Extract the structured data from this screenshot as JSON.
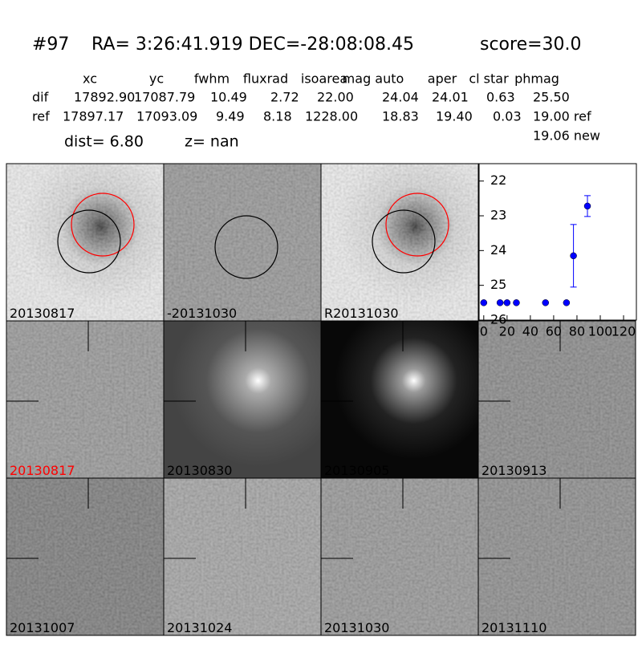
{
  "header": {
    "id": "#97",
    "coords": "RA= 3:26:41.919 DEC=-28:08:08.45",
    "score": "score=30.0"
  },
  "table": {
    "columns": [
      "xc",
      "yc",
      "fwhm",
      "fluxrad",
      "isoarea",
      "mag auto",
      "aper",
      "cl star",
      "phmag"
    ],
    "rows": [
      [
        "dif",
        "17892.90",
        "17087.79",
        "10.49",
        "2.72",
        "22.00",
        "24.04",
        "24.01",
        "0.63",
        "25.50"
      ],
      [
        "ref",
        "17897.17",
        "17093.09",
        "9.49",
        "8.18",
        "1228.00",
        "18.83",
        "19.40",
        "0.03",
        "19.00 ref"
      ]
    ],
    "note": "19.06 new",
    "dist": "dist=  6.80",
    "z": "z=   nan"
  },
  "tiles": [
    "20130817",
    "-20131030",
    "R20131030",
    "20130817",
    "20130830",
    "20130905",
    "20130913",
    "20131007",
    "20131024",
    "20131030",
    "20131110"
  ],
  "chart_data": {
    "type": "errorbar",
    "x": [
      0,
      14,
      20,
      28,
      53,
      71,
      77,
      89
    ],
    "values": [
      25.5,
      25.5,
      25.5,
      25.5,
      25.5,
      25.5,
      24.15,
      22.72
    ],
    "errors": [
      0,
      0,
      0,
      0,
      0,
      0,
      0.9,
      0.3
    ],
    "color": "#0000ff",
    "xlim": [
      -4,
      131
    ],
    "ylim": [
      26,
      21.5
    ],
    "xticks": [
      0,
      20,
      40,
      60,
      80,
      100,
      120
    ],
    "yticks": [
      22,
      23,
      24,
      25,
      26
    ]
  }
}
